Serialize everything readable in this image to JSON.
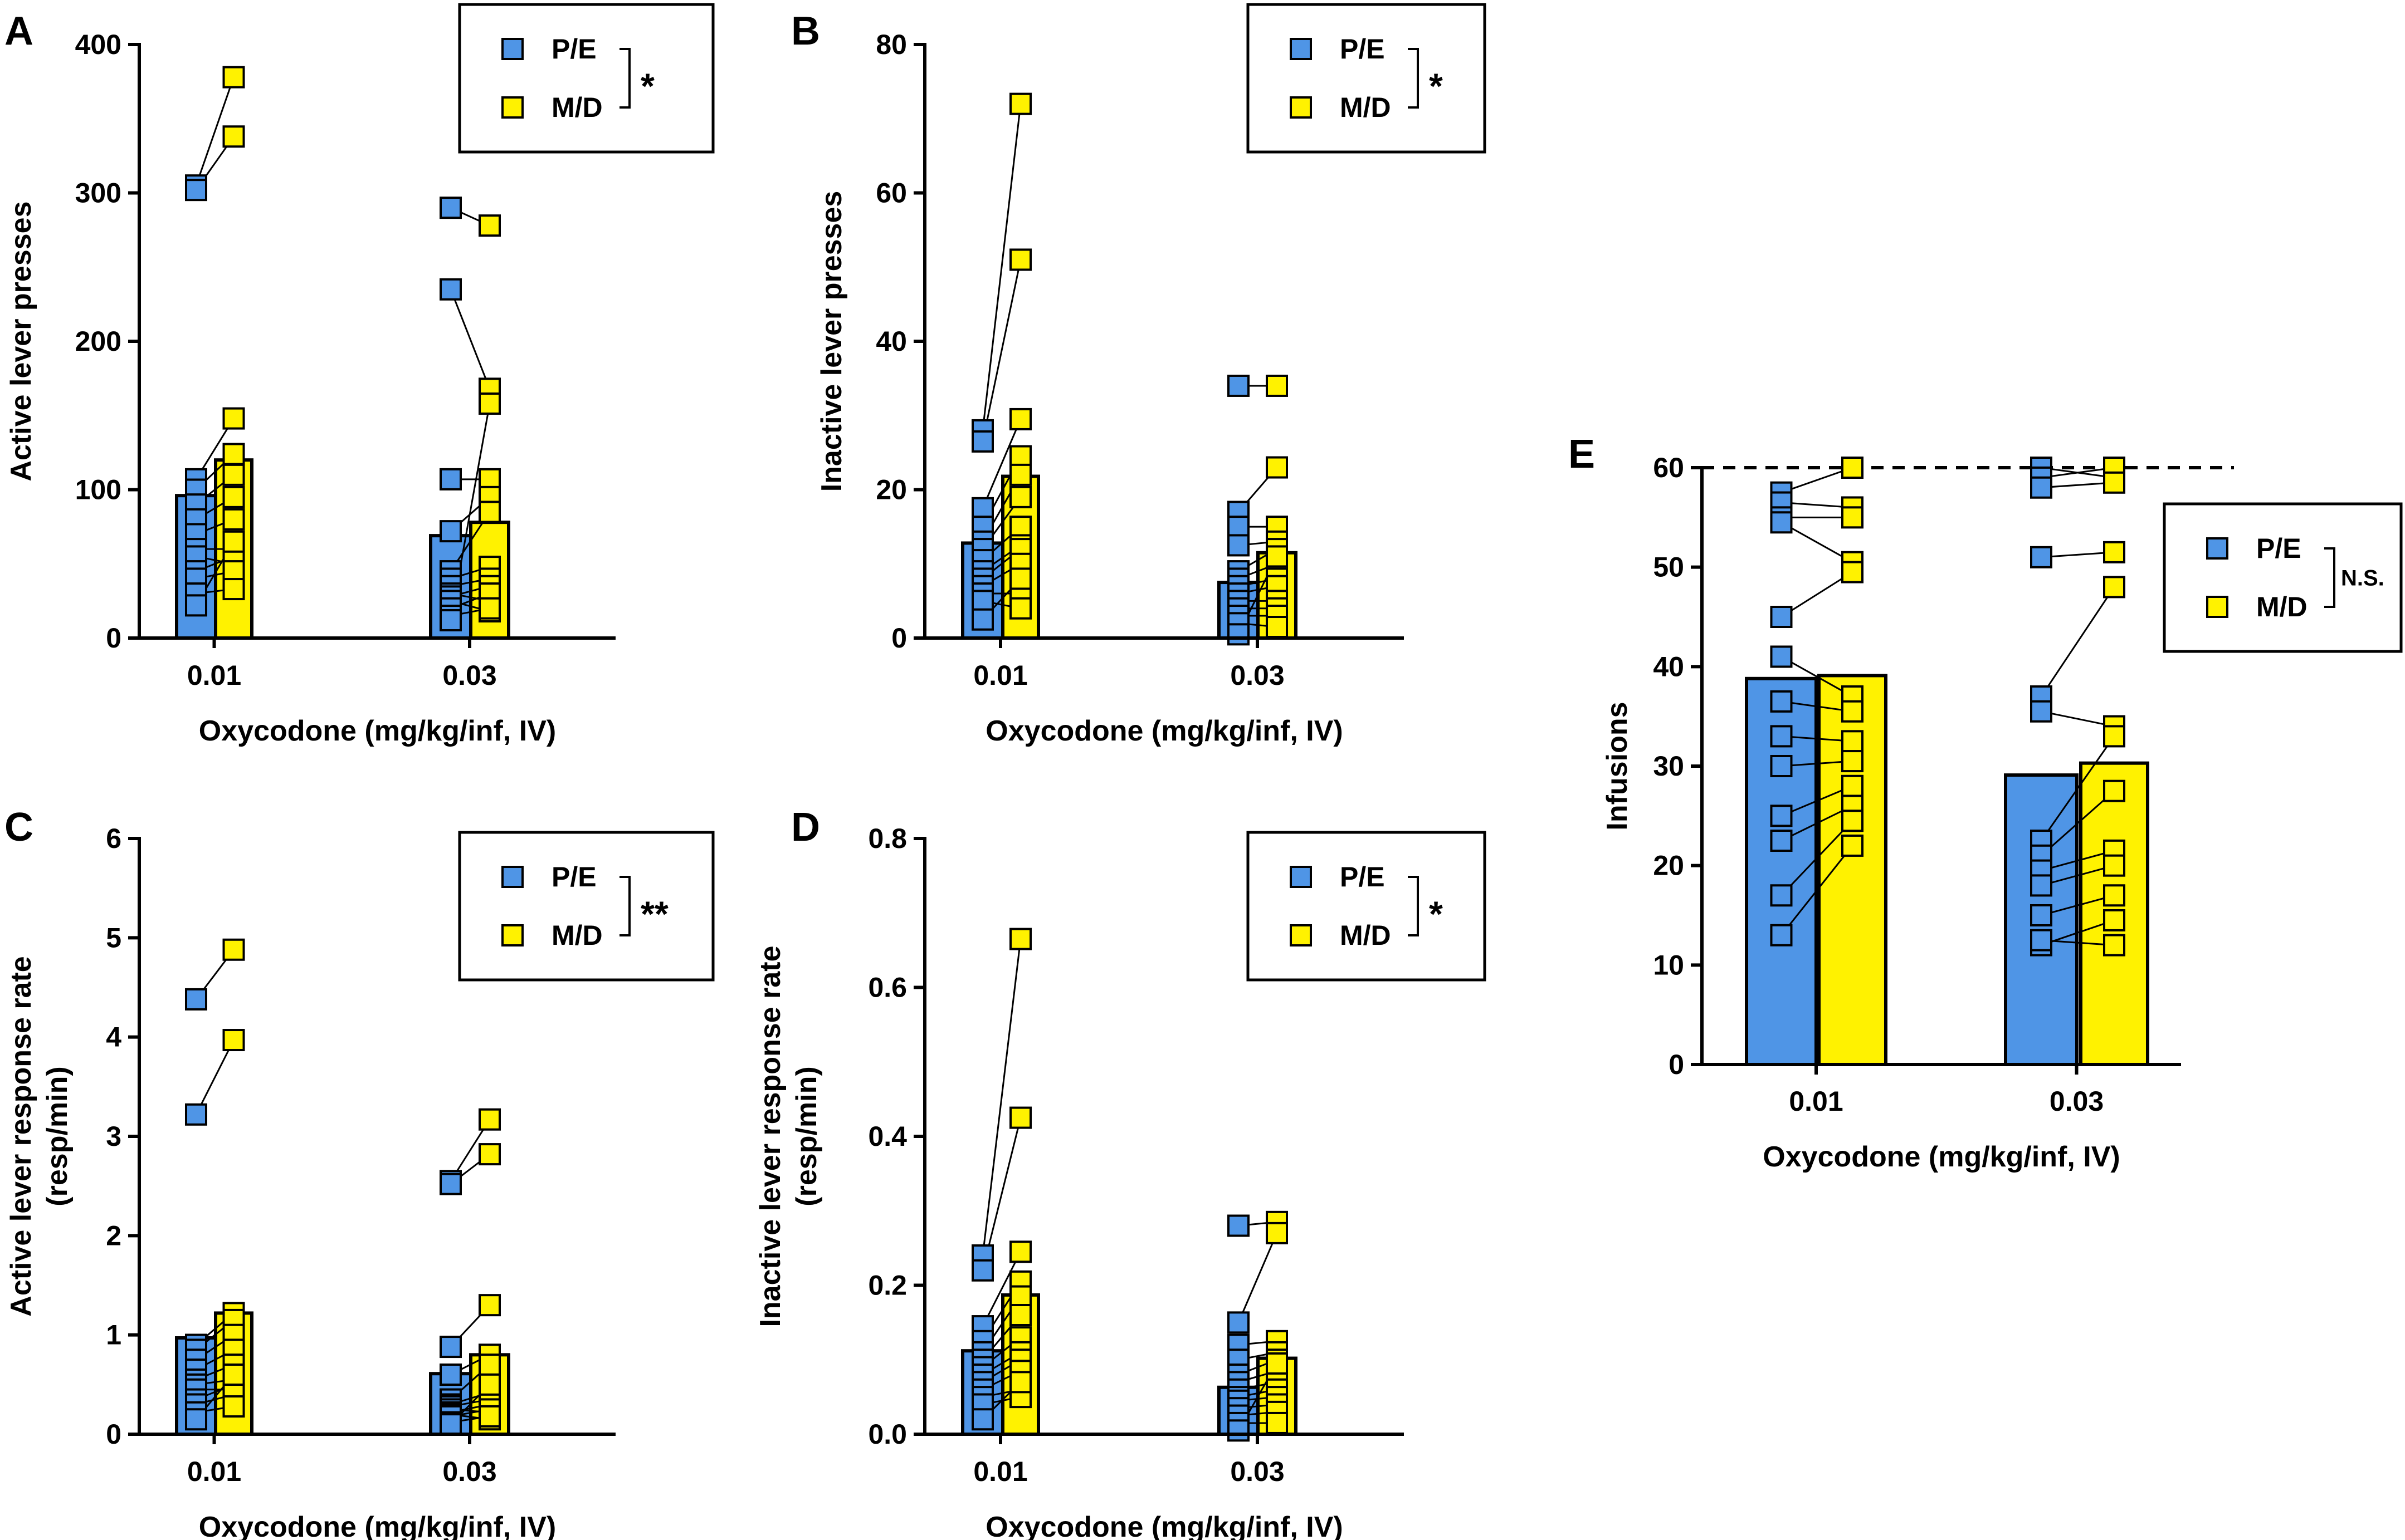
{
  "colors": {
    "pe": "#4f95e6",
    "md": "#fff200",
    "axis": "#000000"
  },
  "chart_data": [
    {
      "id": "A",
      "panel_label": "A",
      "type": "bar",
      "categories": [
        "0.01",
        "0.03"
      ],
      "xlabel": "Oxycodone (mg/kg/inf, IV)",
      "ylabel": [
        "Active lever presses"
      ],
      "ylim": [
        0,
        400
      ],
      "yticks": [
        0,
        100,
        200,
        300,
        400
      ],
      "ytick_labels": [
        "0",
        "100",
        "200",
        "300",
        "400"
      ],
      "legend": {
        "entries": [
          "P/E",
          "M/D"
        ],
        "significance": "*"
      },
      "series": [
        {
          "name": "P/E",
          "color": "#4f95e6",
          "means": [
            96,
            69
          ]
        },
        {
          "name": "M/D",
          "color": "#fff200",
          "means": [
            120,
            78
          ]
        }
      ],
      "subjects": {
        "0.01": {
          "P/E": [
            305,
            302,
            107,
            100,
            90,
            80,
            70,
            60,
            55,
            45,
            40,
            30,
            22
          ],
          "M/D": [
            378,
            338,
            148,
            124,
            110,
            95,
            80,
            60,
            50,
            55,
            45,
            33,
            65
          ]
        },
        "0.03": {
          "P/E": [
            290,
            235,
            107,
            72,
            45,
            40,
            35,
            30,
            28,
            25,
            20,
            15,
            12
          ],
          "M/D": [
            278,
            168,
            107,
            95,
            85,
            48,
            40,
            25,
            35,
            18,
            30,
            20,
            158
          ]
        }
      }
    },
    {
      "id": "B",
      "panel_label": "B",
      "type": "bar",
      "categories": [
        "0.01",
        "0.03"
      ],
      "xlabel": "Oxycodone (mg/kg/inf, IV)",
      "ylabel": [
        "Inactive lever presses"
      ],
      "ylim": [
        0,
        80
      ],
      "yticks": [
        0,
        20,
        40,
        60,
        80
      ],
      "ytick_labels": [
        "0",
        "20",
        "40",
        "60",
        "80"
      ],
      "legend": {
        "entries": [
          "P/E",
          "M/D"
        ],
        "significance": "*"
      },
      "series": [
        {
          "name": "P/E",
          "color": "#4f95e6",
          "means": [
            12.8,
            7.5
          ]
        },
        {
          "name": "M/D",
          "color": "#fff200",
          "means": [
            21.8,
            11.5
          ]
        }
      ],
      "subjects": {
        "0.01": {
          "P/E": [
            28,
            26.5,
            17.5,
            15,
            13,
            12,
            10.5,
            9,
            8,
            7,
            6,
            5,
            2.5
          ],
          "M/D": [
            72,
            51,
            29.5,
            24.5,
            22,
            19,
            15,
            12.5,
            12,
            10,
            6,
            4,
            8
          ]
        },
        "0.03": {
          "P/E": [
            34,
            17,
            15,
            12.5,
            9,
            8,
            7,
            6,
            5,
            4,
            3,
            2,
            0.5
          ],
          "M/D": [
            34,
            23,
            15,
            13,
            12,
            10,
            8,
            7,
            5,
            4,
            3,
            1.5,
            11
          ]
        }
      }
    },
    {
      "id": "C",
      "panel_label": "C",
      "type": "bar",
      "categories": [
        "0.01",
        "0.03"
      ],
      "xlabel": "Oxycodone (mg/kg/inf, IV)",
      "ylabel": [
        "Active lever response rate",
        "(resp/min)"
      ],
      "ylim": [
        0,
        6
      ],
      "yticks": [
        0,
        1,
        2,
        3,
        4,
        5,
        6
      ],
      "ytick_labels": [
        "0",
        "1",
        "2",
        "3",
        "4",
        "5",
        "6"
      ],
      "legend": {
        "entries": [
          "P/E",
          "M/D"
        ],
        "significance": "**"
      },
      "series": [
        {
          "name": "P/E",
          "color": "#4f95e6",
          "means": [
            0.97,
            0.61
          ]
        },
        {
          "name": "M/D",
          "color": "#fff200",
          "means": [
            1.22,
            0.8
          ]
        }
      ],
      "subjects": {
        "0.01": {
          "P/E": [
            4.38,
            3.22,
            0.9,
            0.85,
            0.75,
            0.65,
            0.55,
            0.5,
            0.45,
            0.35,
            0.3,
            0.22,
            0.15
          ],
          "M/D": [
            4.88,
            3.97,
            1.22,
            1.15,
            1.0,
            0.85,
            0.7,
            0.55,
            0.45,
            0.5,
            0.4,
            0.28,
            0.6
          ]
        },
        "0.03": {
          "P/E": [
            2.55,
            2.52,
            0.88,
            0.6,
            0.35,
            0.3,
            0.28,
            0.25,
            0.22,
            0.2,
            0.18,
            0.12,
            0.1
          ],
          "M/D": [
            3.17,
            2.82,
            1.3,
            0.8,
            0.7,
            0.42,
            0.35,
            0.22,
            0.3,
            0.15,
            0.25,
            0.18,
            0.5
          ]
        }
      }
    },
    {
      "id": "D",
      "panel_label": "D",
      "type": "bar",
      "categories": [
        "0.01",
        "0.03"
      ],
      "xlabel": "Oxycodone (mg/kg/inf, IV)",
      "ylabel": [
        "Inactive lever response rate",
        "(resp/min)"
      ],
      "ylim": [
        0,
        0.8
      ],
      "yticks": [
        0,
        0.2,
        0.4,
        0.6,
        0.8
      ],
      "ytick_labels": [
        "0.0",
        "0.2",
        "0.4",
        "0.6",
        "0.8"
      ],
      "legend": {
        "entries": [
          "P/E",
          "M/D"
        ],
        "significance": "*"
      },
      "series": [
        {
          "name": "P/E",
          "color": "#4f95e6",
          "means": [
            0.112,
            0.063
          ]
        },
        {
          "name": "M/D",
          "color": "#fff200",
          "means": [
            0.187,
            0.102
          ]
        }
      ],
      "subjects": {
        "0.01": {
          "P/E": [
            0.24,
            0.22,
            0.145,
            0.125,
            0.11,
            0.1,
            0.09,
            0.08,
            0.07,
            0.06,
            0.05,
            0.04,
            0.02
          ],
          "M/D": [
            0.665,
            0.425,
            0.245,
            0.205,
            0.185,
            0.16,
            0.13,
            0.11,
            0.1,
            0.085,
            0.06,
            0.05,
            0.07
          ]
        },
        "0.03": {
          "P/E": [
            0.28,
            0.15,
            0.12,
            0.1,
            0.08,
            0.07,
            0.06,
            0.05,
            0.045,
            0.035,
            0.025,
            0.015,
            0.005
          ],
          "M/D": [
            0.285,
            0.27,
            0.125,
            0.11,
            0.1,
            0.085,
            0.07,
            0.06,
            0.05,
            0.04,
            0.03,
            0.015,
            0.095
          ]
        }
      }
    },
    {
      "id": "E",
      "panel_label": "E",
      "type": "bar",
      "categories": [
        "0.01",
        "0.03"
      ],
      "xlabel": "Oxycodone (mg/kg/inf, IV)",
      "ylabel": [
        "Infusions"
      ],
      "ylim": [
        0,
        60
      ],
      "yticks": [
        0,
        10,
        20,
        30,
        40,
        50,
        60
      ],
      "ytick_labels": [
        "0",
        "10",
        "20",
        "30",
        "40",
        "50",
        "60"
      ],
      "reference_line": 60,
      "legend": {
        "entries": [
          "P/E",
          "M/D"
        ],
        "significance": "N.S."
      },
      "series": [
        {
          "name": "P/E",
          "color": "#4f95e6",
          "means": [
            38.8,
            29.1
          ]
        },
        {
          "name": "M/D",
          "color": "#fff200",
          "means": [
            39.1,
            30.3
          ]
        }
      ],
      "subjects": {
        "0.01": {
          "P/E": [
            57.5,
            56.5,
            55,
            54.5,
            45,
            41,
            36.5,
            33,
            30,
            25,
            22.5,
            17,
            13
          ],
          "M/D": [
            60,
            56,
            55,
            50.5,
            49.5,
            37,
            35.5,
            32.5,
            30.5,
            28,
            26,
            24.5,
            22
          ]
        },
        "0.03": {
          "P/E": [
            60,
            59,
            58,
            51,
            37,
            35.5,
            22.5,
            21,
            19.5,
            18,
            15,
            12,
            12.5
          ],
          "M/D": [
            59,
            60,
            58.5,
            51.5,
            48,
            34,
            33,
            27.5,
            21.5,
            20,
            17,
            14.5,
            12
          ]
        }
      }
    }
  ]
}
